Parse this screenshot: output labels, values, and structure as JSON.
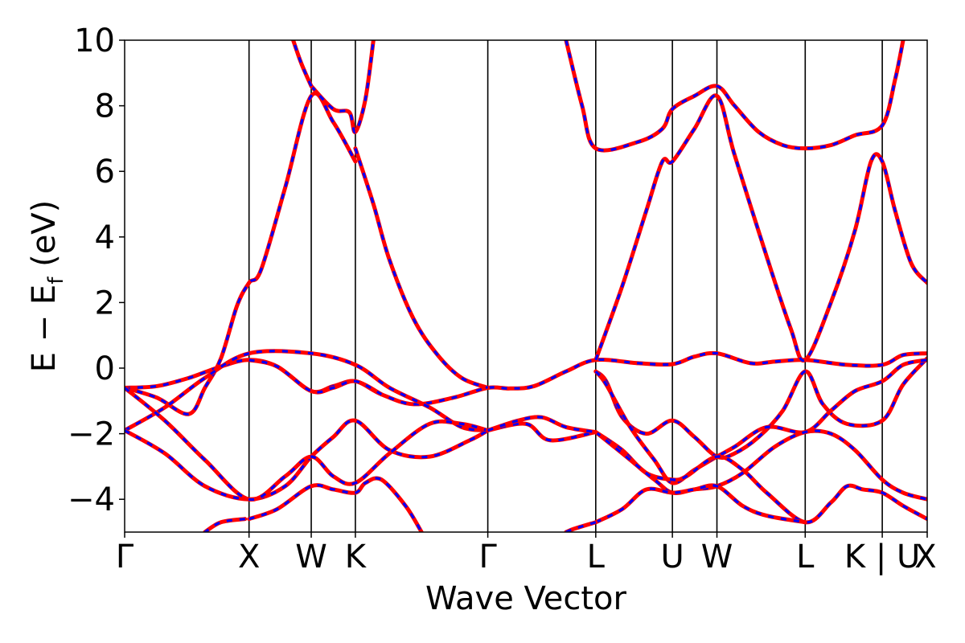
{
  "chart_data": {
    "type": "line",
    "title": "",
    "xlabel": "Wave Vector",
    "ylabel": {
      "main": "E − E",
      "subscript": "f",
      "unit": " (eV)"
    },
    "ylim": [
      -5,
      10
    ],
    "yticks": [
      -4,
      -2,
      0,
      2,
      4,
      6,
      8,
      10
    ],
    "ytick_labels": [
      "−4",
      "−2",
      "0",
      "2",
      "4",
      "6",
      "8",
      "10"
    ],
    "xlim": [
      0,
      1
    ],
    "kpoints": [
      {
        "label": "Γ",
        "x": 0.0
      },
      {
        "label": "X",
        "x": 0.155
      },
      {
        "label": "W",
        "x": 0.2325
      },
      {
        "label": "K",
        "x": 0.2875
      },
      {
        "label": "Γ",
        "x": 0.4525
      },
      {
        "label": "L",
        "x": 0.587
      },
      {
        "label": "U",
        "x": 0.6825
      },
      {
        "label": "W",
        "x": 0.738
      },
      {
        "label": "L",
        "x": 0.848
      },
      {
        "label": "K | U",
        "x": 0.944
      },
      {
        "label": "X",
        "x": 1.0
      }
    ],
    "grid": false,
    "legend": "none",
    "series_style": {
      "colors": [
        "#ff0000",
        "#0000ff"
      ],
      "dash": "blue dashed over solid red"
    },
    "series": [
      {
        "values": [
          [
            0,
            -0.6
          ],
          [
            0.04,
            -0.55
          ],
          [
            0.08,
            -0.3
          ],
          [
            0.12,
            0.05
          ],
          [
            0.155,
            0.25
          ],
          [
            0.19,
            0.05
          ],
          [
            0.2325,
            -0.7
          ],
          [
            0.26,
            -0.55
          ],
          [
            0.2875,
            -0.4
          ],
          [
            0.32,
            -0.8
          ],
          [
            0.36,
            -1.1
          ],
          [
            0.41,
            -0.9
          ],
          [
            0.4525,
            -0.6
          ],
          [
            0.48,
            -0.62
          ],
          [
            0.51,
            -0.55
          ],
          [
            0.55,
            -0.1
          ],
          [
            0.587,
            0.25
          ],
          [
            0.64,
            0.15
          ],
          [
            0.6825,
            0.12
          ],
          [
            0.71,
            0.35
          ],
          [
            0.738,
            0.45
          ],
          [
            0.78,
            0.15
          ],
          [
            0.81,
            0.2
          ],
          [
            0.848,
            0.25
          ],
          [
            0.9,
            0.1
          ],
          [
            0.944,
            0.1
          ],
          [
            0.97,
            0.4
          ],
          [
            1,
            0.45
          ]
        ]
      },
      {
        "values": [
          [
            0,
            -0.6
          ],
          [
            0.04,
            -0.9
          ],
          [
            0.08,
            -1.4
          ],
          [
            0.1,
            -0.6
          ],
          [
            0.12,
            0.3
          ],
          [
            0.14,
            1.9
          ],
          [
            0.155,
            2.6
          ],
          [
            0.17,
            3
          ],
          [
            0.2,
            5.5
          ],
          [
            0.2325,
            8.3
          ],
          [
            0.26,
            7.5
          ],
          [
            0.2875,
            6.3
          ]
        ]
      },
      {
        "values": [
          [
            0,
            -1.9
          ],
          [
            0.05,
            -1.2
          ],
          [
            0.1,
            -0.3
          ],
          [
            0.155,
            0.45
          ],
          [
            0.2325,
            0.45
          ],
          [
            0.2875,
            0.1
          ],
          [
            0.33,
            -0.6
          ],
          [
            0.38,
            -1.2
          ],
          [
            0.42,
            -1.8
          ],
          [
            0.4525,
            -1.9
          ]
        ]
      },
      {
        "values": [
          [
            0,
            -1.9
          ],
          [
            0.05,
            -2.6
          ],
          [
            0.1,
            -3.6
          ],
          [
            0.155,
            -4
          ],
          [
            0.2,
            -3.6
          ],
          [
            0.2325,
            -2.7
          ],
          [
            0.26,
            -2.1
          ],
          [
            0.2875,
            -1.6
          ],
          [
            0.33,
            -2.5
          ],
          [
            0.38,
            -2.7
          ],
          [
            0.43,
            -2.2
          ],
          [
            0.4525,
            -1.9
          ]
        ]
      },
      {
        "values": [
          [
            0,
            -0.6
          ],
          [
            0.05,
            -1.6
          ],
          [
            0.1,
            -2.8
          ],
          [
            0.155,
            -4
          ],
          [
            0.2,
            -3.3
          ],
          [
            0.2325,
            -2.7
          ],
          [
            0.26,
            -3.3
          ],
          [
            0.2875,
            -3.5
          ],
          [
            0.33,
            -2.6
          ],
          [
            0.38,
            -1.7
          ],
          [
            0.42,
            -1.7
          ],
          [
            0.4525,
            -1.9
          ]
        ]
      },
      {
        "values": [
          [
            0.155,
            0.25
          ],
          [
            0.19,
            0.05
          ],
          [
            0.2325,
            -0.7
          ],
          [
            0.26,
            -0.6
          ],
          [
            0.2875,
            -0.4
          ],
          [
            0.32,
            -0.8
          ]
        ]
      },
      {
        "values": [
          [
            0.155,
            -4.6
          ],
          [
            0.19,
            -4.3
          ],
          [
            0.2325,
            -3.6
          ],
          [
            0.26,
            -3.7
          ],
          [
            0.2875,
            -3.8
          ],
          [
            0.3,
            -3.5
          ],
          [
            0.32,
            -3.4
          ],
          [
            0.35,
            -4.2
          ],
          [
            0.37,
            -5
          ]
        ]
      },
      {
        "values": [
          [
            0.15,
            -4.6
          ],
          [
            0.12,
            -4.7
          ],
          [
            0.1,
            -5
          ]
        ]
      },
      {
        "values": [
          [
            0.2325,
            8.6
          ],
          [
            0.26,
            7.9
          ],
          [
            0.28,
            7.8
          ],
          [
            0.2875,
            7.2
          ],
          [
            0.3,
            8.2
          ],
          [
            0.31,
            10
          ]
        ]
      },
      {
        "values": [
          [
            0.2325,
            8.6
          ],
          [
            0.22,
            9.3
          ],
          [
            0.21,
            10
          ]
        ]
      },
      {
        "values": [
          [
            0.2875,
            6.7
          ],
          [
            0.31,
            5
          ],
          [
            0.33,
            3.3
          ],
          [
            0.36,
            1.5
          ],
          [
            0.39,
            0.4
          ],
          [
            0.42,
            -0.3
          ],
          [
            0.4525,
            -0.6
          ]
        ]
      },
      {
        "values": [
          [
            0.55,
            10
          ],
          [
            0.57,
            8
          ],
          [
            0.587,
            6.7
          ],
          [
            0.64,
            6.9
          ],
          [
            0.67,
            7.3
          ],
          [
            0.6825,
            7.9
          ],
          [
            0.71,
            8.3
          ],
          [
            0.738,
            8.6
          ],
          [
            0.76,
            8
          ],
          [
            0.79,
            7.2
          ],
          [
            0.82,
            6.8
          ],
          [
            0.848,
            6.7
          ],
          [
            0.88,
            6.8
          ],
          [
            0.91,
            7.1
          ],
          [
            0.944,
            7.4
          ],
          [
            0.96,
            8.8
          ],
          [
            0.97,
            10
          ]
        ]
      },
      {
        "values": [
          [
            0.587,
            0.25
          ],
          [
            0.62,
            2.5
          ],
          [
            0.65,
            4.8
          ],
          [
            0.67,
            6.3
          ],
          [
            0.6825,
            6.3
          ],
          [
            0.71,
            7.3
          ],
          [
            0.738,
            8.3
          ],
          [
            0.76,
            6.5
          ],
          [
            0.8,
            3.4
          ],
          [
            0.83,
            1.2
          ],
          [
            0.848,
            0.25
          ],
          [
            0.88,
            2
          ],
          [
            0.91,
            4.2
          ],
          [
            0.93,
            6.3
          ],
          [
            0.944,
            6.3
          ],
          [
            0.96,
            4.8
          ],
          [
            0.98,
            3.2
          ],
          [
            1,
            2.6
          ]
        ]
      },
      {
        "values": [
          [
            0.587,
            -0.1
          ],
          [
            0.6,
            -0.4
          ],
          [
            0.62,
            -1.5
          ],
          [
            0.65,
            -2
          ],
          [
            0.6825,
            -1.6
          ],
          [
            0.71,
            -2.1
          ],
          [
            0.738,
            -2.7
          ],
          [
            0.76,
            -2.6
          ],
          [
            0.79,
            -2.1
          ],
          [
            0.82,
            -1.3
          ],
          [
            0.848,
            -0.1
          ],
          [
            0.87,
            -1.1
          ],
          [
            0.9,
            -1.7
          ],
          [
            0.944,
            -1.6
          ],
          [
            0.97,
            -0.5
          ],
          [
            1,
            0.3
          ]
        ]
      },
      {
        "values": [
          [
            0.587,
            -0.1
          ],
          [
            0.6,
            -0.5
          ],
          [
            0.63,
            -1.8
          ],
          [
            0.66,
            -2.8
          ],
          [
            0.6825,
            -3.5
          ],
          [
            0.71,
            -3.1
          ],
          [
            0.738,
            -2.7
          ],
          [
            0.76,
            -2.4
          ],
          [
            0.8,
            -1.8
          ],
          [
            0.848,
            -1.95
          ],
          [
            0.88,
            -1.3
          ],
          [
            0.91,
            -0.7
          ],
          [
            0.944,
            -0.4
          ],
          [
            0.97,
            0.1
          ],
          [
            1,
            0.25
          ]
        ]
      },
      {
        "values": [
          [
            0.587,
            -1.95
          ],
          [
            0.62,
            -2.5
          ],
          [
            0.65,
            -3.2
          ],
          [
            0.6825,
            -3.4
          ],
          [
            0.7,
            -3.3
          ],
          [
            0.738,
            -2.7
          ],
          [
            0.77,
            -3.1
          ],
          [
            0.8,
            -3.8
          ],
          [
            0.848,
            -4.7
          ],
          [
            0.88,
            -4.1
          ],
          [
            0.9,
            -3.6
          ],
          [
            0.92,
            -3.7
          ],
          [
            0.944,
            -3.8
          ],
          [
            0.97,
            -4.2
          ],
          [
            1,
            -4.6
          ]
        ]
      },
      {
        "values": [
          [
            0.587,
            -1.95
          ],
          [
            0.62,
            -2.6
          ],
          [
            0.66,
            -3.4
          ],
          [
            0.6825,
            -3.8
          ],
          [
            0.71,
            -3.7
          ],
          [
            0.738,
            -3.6
          ],
          [
            0.77,
            -3.2
          ],
          [
            0.81,
            -2.4
          ],
          [
            0.848,
            -1.95
          ],
          [
            0.88,
            -2
          ],
          [
            0.91,
            -2.5
          ],
          [
            0.944,
            -3.4
          ],
          [
            0.97,
            -3.8
          ],
          [
            1,
            -4
          ]
        ]
      },
      {
        "values": [
          [
            0.587,
            -4.7
          ],
          [
            0.62,
            -4.3
          ],
          [
            0.65,
            -3.7
          ],
          [
            0.6825,
            -3.8
          ],
          [
            0.71,
            -3.7
          ],
          [
            0.738,
            -3.6
          ],
          [
            0.77,
            -4.2
          ],
          [
            0.8,
            -4.5
          ],
          [
            0.848,
            -4.7
          ]
        ]
      },
      {
        "values": [
          [
            0.4525,
            -1.9
          ],
          [
            0.5,
            -1.7
          ],
          [
            0.53,
            -2.2
          ],
          [
            0.587,
            -1.95
          ]
        ]
      },
      {
        "values": [
          [
            0.4525,
            -1.9
          ],
          [
            0.49,
            -1.6
          ],
          [
            0.52,
            -1.5
          ],
          [
            0.55,
            -1.8
          ],
          [
            0.587,
            -1.95
          ]
        ]
      },
      {
        "values": [
          [
            0.587,
            -4.7
          ],
          [
            0.56,
            -4.9
          ],
          [
            0.55,
            -5
          ]
        ]
      }
    ]
  }
}
